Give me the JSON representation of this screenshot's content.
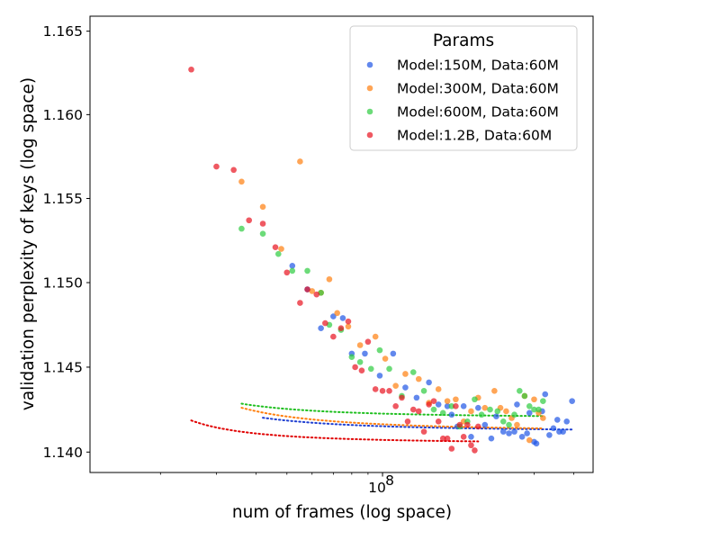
{
  "chart_data": {
    "type": "scatter",
    "title": "",
    "xlabel": "num of frames (log space)",
    "ylabel": "validation perplexity of keys (log space)",
    "xscale": "log",
    "yscale": "log",
    "xlim": [
      12000000,
      460000000
    ],
    "ylim": [
      1.1388,
      1.1659
    ],
    "xticks": [
      {
        "value": 100000000,
        "label_base": "10",
        "label_exp": "8"
      }
    ],
    "yticks": [
      {
        "value": 1.14,
        "label": "1.140"
      },
      {
        "value": 1.145,
        "label": "1.145"
      },
      {
        "value": 1.15,
        "label": "1.150"
      },
      {
        "value": 1.155,
        "label": "1.155"
      },
      {
        "value": 1.16,
        "label": "1.160"
      },
      {
        "value": 1.165,
        "label": "1.165"
      }
    ],
    "grid": false,
    "legend": {
      "title": "Params",
      "position": "top-right"
    },
    "series": [
      {
        "name": "Model:150M, Data:60M",
        "color": "#1f55e6",
        "points": [
          [
            52000000,
            1.151
          ],
          [
            58000000,
            1.1496
          ],
          [
            64000000,
            1.1473
          ],
          [
            70000000,
            1.148
          ],
          [
            75000000,
            1.1479
          ],
          [
            80000000,
            1.1458
          ],
          [
            88000000,
            1.1458
          ],
          [
            98000000,
            1.1445
          ],
          [
            108000000,
            1.1458
          ],
          [
            118000000,
            1.1438
          ],
          [
            128000000,
            1.1432
          ],
          [
            140000000,
            1.1441
          ],
          [
            150000000,
            1.1428
          ],
          [
            160000000,
            1.1427
          ],
          [
            165000000,
            1.1422
          ],
          [
            172000000,
            1.1415
          ],
          [
            180000000,
            1.1427
          ],
          [
            190000000,
            1.1409
          ],
          [
            200000000,
            1.1426
          ],
          [
            210000000,
            1.1416
          ],
          [
            220000000,
            1.1408
          ],
          [
            228000000,
            1.1421
          ],
          [
            240000000,
            1.1412
          ],
          [
            250000000,
            1.1411
          ],
          [
            260000000,
            1.1412
          ],
          [
            265000000,
            1.1428
          ],
          [
            275000000,
            1.1409
          ],
          [
            285000000,
            1.1411
          ],
          [
            290000000,
            1.1423
          ],
          [
            300000000,
            1.1406
          ],
          [
            305000000,
            1.1405
          ],
          [
            318000000,
            1.1424
          ],
          [
            325000000,
            1.1434
          ],
          [
            335000000,
            1.141
          ],
          [
            345000000,
            1.1414
          ],
          [
            355000000,
            1.1419
          ],
          [
            360000000,
            1.1412
          ],
          [
            370000000,
            1.1412
          ],
          [
            380000000,
            1.1418
          ],
          [
            395000000,
            1.143
          ]
        ]
      },
      {
        "name": "Model:300M, Data:60M",
        "color": "#ff7f0e",
        "points": [
          [
            36000000,
            1.156
          ],
          [
            42000000,
            1.1545
          ],
          [
            48000000,
            1.152
          ],
          [
            55000000,
            1.1572
          ],
          [
            60000000,
            1.1495
          ],
          [
            64000000,
            1.1494
          ],
          [
            68000000,
            1.1502
          ],
          [
            72000000,
            1.1482
          ],
          [
            78000000,
            1.1474
          ],
          [
            85000000,
            1.1463
          ],
          [
            95000000,
            1.1468
          ],
          [
            102000000,
            1.1455
          ],
          [
            110000000,
            1.1439
          ],
          [
            118000000,
            1.1446
          ],
          [
            130000000,
            1.1443
          ],
          [
            140000000,
            1.1429
          ],
          [
            150000000,
            1.1437
          ],
          [
            160000000,
            1.143
          ],
          [
            170000000,
            1.1431
          ],
          [
            180000000,
            1.1418
          ],
          [
            190000000,
            1.1424
          ],
          [
            200000000,
            1.1432
          ],
          [
            210000000,
            1.1426
          ],
          [
            225000000,
            1.1436
          ],
          [
            235000000,
            1.1426
          ],
          [
            245000000,
            1.1424
          ],
          [
            255000000,
            1.142
          ],
          [
            265000000,
            1.1416
          ],
          [
            280000000,
            1.1433
          ],
          [
            290000000,
            1.1407
          ],
          [
            300000000,
            1.1431
          ],
          [
            310000000,
            1.1423
          ],
          [
            320000000,
            1.142
          ]
        ]
      },
      {
        "name": "Model:600M, Data:60M",
        "color": "#2ecc40",
        "points": [
          [
            36000000,
            1.1532
          ],
          [
            42000000,
            1.1529
          ],
          [
            47000000,
            1.1517
          ],
          [
            52000000,
            1.1507
          ],
          [
            58000000,
            1.1507
          ],
          [
            64000000,
            1.1494
          ],
          [
            68000000,
            1.1475
          ],
          [
            74000000,
            1.1472
          ],
          [
            80000000,
            1.1456
          ],
          [
            85000000,
            1.1453
          ],
          [
            92000000,
            1.1449
          ],
          [
            98000000,
            1.146
          ],
          [
            105000000,
            1.1449
          ],
          [
            115000000,
            1.1433
          ],
          [
            125000000,
            1.1447
          ],
          [
            135000000,
            1.1436
          ],
          [
            145000000,
            1.1425
          ],
          [
            155000000,
            1.1423
          ],
          [
            165000000,
            1.1427
          ],
          [
            175000000,
            1.1415
          ],
          [
            185000000,
            1.1418
          ],
          [
            195000000,
            1.1431
          ],
          [
            205000000,
            1.1422
          ],
          [
            218000000,
            1.1425
          ],
          [
            230000000,
            1.1424
          ],
          [
            240000000,
            1.1418
          ],
          [
            250000000,
            1.1416
          ],
          [
            260000000,
            1.1422
          ],
          [
            270000000,
            1.1436
          ],
          [
            280000000,
            1.1433
          ],
          [
            290000000,
            1.1427
          ],
          [
            300000000,
            1.1425
          ],
          [
            310000000,
            1.1425
          ],
          [
            320000000,
            1.143
          ]
        ]
      },
      {
        "name": "Model:1.2B, Data:60M",
        "color": "#e8121f",
        "points": [
          [
            25000000,
            1.1627
          ],
          [
            30000000,
            1.1569
          ],
          [
            34000000,
            1.1567
          ],
          [
            38000000,
            1.1537
          ],
          [
            42000000,
            1.1535
          ],
          [
            46000000,
            1.1521
          ],
          [
            50000000,
            1.1506
          ],
          [
            55000000,
            1.1488
          ],
          [
            58000000,
            1.1496
          ],
          [
            62000000,
            1.1493
          ],
          [
            66000000,
            1.1476
          ],
          [
            70000000,
            1.1468
          ],
          [
            74000000,
            1.1473
          ],
          [
            78000000,
            1.1477
          ],
          [
            82000000,
            1.145
          ],
          [
            86000000,
            1.1448
          ],
          [
            90000000,
            1.1465
          ],
          [
            95000000,
            1.1437
          ],
          [
            100000000,
            1.1436
          ],
          [
            105000000,
            1.1436
          ],
          [
            110000000,
            1.1427
          ],
          [
            115000000,
            1.1432
          ],
          [
            120000000,
            1.1418
          ],
          [
            125000000,
            1.1425
          ],
          [
            130000000,
            1.1424
          ],
          [
            135000000,
            1.1412
          ],
          [
            140000000,
            1.1428
          ],
          [
            145000000,
            1.143
          ],
          [
            150000000,
            1.1418
          ],
          [
            155000000,
            1.1408
          ],
          [
            160000000,
            1.1408
          ],
          [
            165000000,
            1.1402
          ],
          [
            170000000,
            1.1427
          ],
          [
            175000000,
            1.1416
          ],
          [
            180000000,
            1.1409
          ],
          [
            185000000,
            1.1416
          ],
          [
            190000000,
            1.1404
          ],
          [
            195000000,
            1.1401
          ],
          [
            200000000,
            1.1415
          ]
        ]
      }
    ],
    "fit_lines": [
      {
        "series": "Model:150M, Data:60M",
        "color": "#1f3fd1",
        "a": 1.1412,
        "b": 0.0003186,
        "x0": 42000000,
        "x1": 400000000
      },
      {
        "series": "Model:300M, Data:60M",
        "color": "#ff7f0e",
        "a": 1.1412,
        "b": 0.00043575,
        "x0": 36000000,
        "x1": 320000000
      },
      {
        "series": "Model:600M, Data:60M",
        "color": "#1fbf1f",
        "a": 1.142,
        "b": 0.00026225,
        "x0": 36000000,
        "x1": 320000000
      },
      {
        "series": "Model:1.2B, Data:60M",
        "color": "#e00000",
        "a": 1.1405,
        "b": 0.00021505,
        "x0": 25000000,
        "x1": 200000000
      }
    ]
  }
}
